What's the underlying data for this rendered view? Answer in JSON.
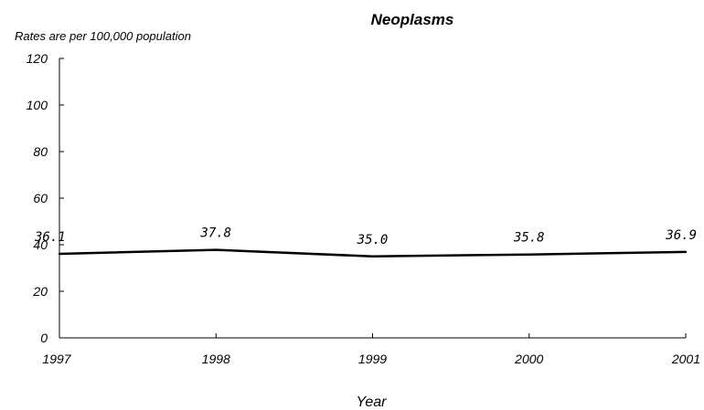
{
  "chart_data": {
    "type": "line",
    "title": "Neoplasms",
    "subtitle": "Rates are per 100,000 population",
    "xlabel": "Year",
    "ylabel": "",
    "categories": [
      "1997",
      "1998",
      "1999",
      "2000",
      "2001"
    ],
    "series": [
      {
        "values": [
          36.1,
          37.8,
          35.0,
          35.8,
          36.9
        ],
        "labels": [
          "36.1",
          "37.8",
          "35.0",
          "35.8",
          "36.9"
        ],
        "color": "#000000"
      }
    ],
    "ylim": [
      0,
      120
    ],
    "yticks": [
      "0",
      "20",
      "40",
      "60",
      "80",
      "100",
      "120"
    ],
    "grid": false,
    "legend": "none"
  }
}
